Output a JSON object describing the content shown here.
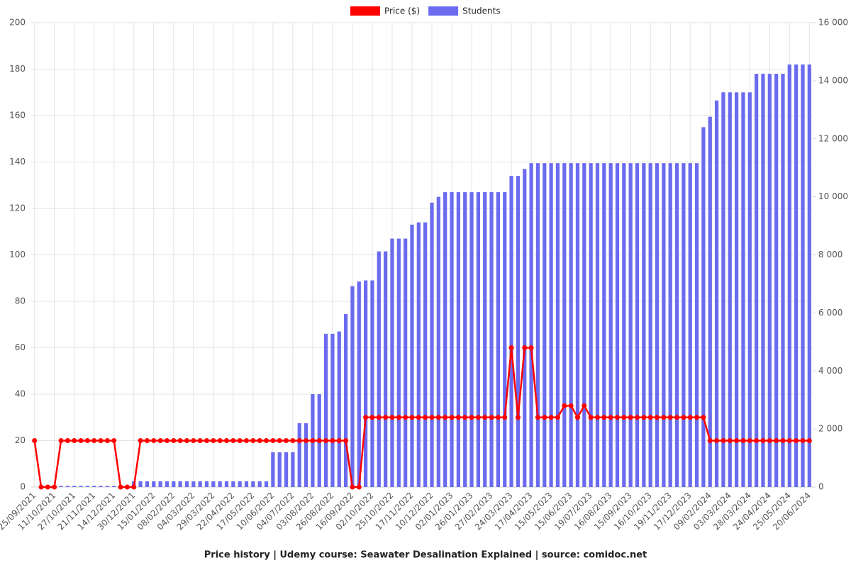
{
  "chart_data": {
    "type": "bar",
    "title": "Price history | Udemy course: Seawater Desalination Explained | source: comidoc.net",
    "categories": [
      "25/09/2021",
      null,
      null,
      "11/10/2021",
      null,
      null,
      "27/10/2021",
      null,
      null,
      "21/11/2021",
      null,
      null,
      "14/12/2021",
      null,
      null,
      "30/12/2021",
      null,
      null,
      "15/01/2022",
      null,
      null,
      "08/02/2022",
      null,
      null,
      "04/03/2022",
      null,
      null,
      "29/03/2022",
      null,
      null,
      "22/04/2022",
      null,
      null,
      "17/05/2022",
      null,
      null,
      "10/06/2022",
      null,
      null,
      "04/07/2022",
      null,
      null,
      "03/08/2022",
      null,
      null,
      "26/08/2022",
      null,
      null,
      "16/09/2022",
      null,
      null,
      "02/10/2022",
      null,
      null,
      "25/10/2022",
      null,
      null,
      "17/11/2022",
      null,
      null,
      "10/12/2022",
      null,
      null,
      "02/01/2023",
      null,
      null,
      "26/01/2023",
      null,
      null,
      "27/02/2023",
      null,
      null,
      "24/03/2023",
      null,
      null,
      "17/04/2023",
      null,
      null,
      "15/05/2023",
      null,
      null,
      "15/06/2023",
      null,
      null,
      "19/07/2023",
      null,
      null,
      "16/08/2023",
      null,
      null,
      "15/09/2023",
      null,
      null,
      "16/10/2023",
      null,
      null,
      "19/11/2023",
      null,
      null,
      "17/12/2023",
      null,
      null,
      "09/02/2024",
      null,
      null,
      "03/03/2024",
      null,
      null,
      "28/03/2024",
      null,
      null,
      "24/04/2024",
      null,
      null,
      "25/05/2024",
      null,
      null,
      "20/06/2024"
    ],
    "series": [
      {
        "name": "Price ($)",
        "type": "line",
        "color": "#ff0000",
        "values": [
          20,
          0,
          0,
          0,
          20,
          20,
          20,
          20,
          20,
          20,
          20,
          20,
          20,
          0,
          0,
          0,
          20,
          20,
          20,
          20,
          20,
          20,
          20,
          20,
          20,
          20,
          20,
          20,
          20,
          20,
          20,
          20,
          20,
          20,
          20,
          20,
          20,
          20,
          20,
          20,
          20,
          20,
          20,
          20,
          20,
          20,
          20,
          20,
          0,
          0,
          30,
          30,
          30,
          30,
          30,
          30,
          30,
          30,
          30,
          30,
          30,
          30,
          30,
          30,
          30,
          30,
          30,
          30,
          30,
          30,
          30,
          30,
          60,
          30,
          60,
          60,
          30,
          30,
          30,
          30,
          35,
          35,
          30,
          35,
          30,
          30,
          30,
          30,
          30,
          30,
          30,
          30,
          30,
          30,
          30,
          30,
          30,
          30,
          30,
          30,
          30,
          30,
          20,
          20,
          20,
          20,
          20,
          20,
          20,
          20,
          20,
          20,
          20,
          20,
          20,
          20,
          20,
          20
        ]
      },
      {
        "name": "Students",
        "type": "bar",
        "axis": "y2",
        "color": "#6b6bef",
        "values": [
          0,
          0,
          0,
          0,
          40,
          40,
          40,
          40,
          40,
          40,
          40,
          40,
          40,
          40,
          40,
          200,
          200,
          200,
          200,
          200,
          200,
          200,
          200,
          200,
          200,
          200,
          200,
          200,
          200,
          200,
          200,
          200,
          200,
          200,
          200,
          200,
          1200,
          1200,
          1200,
          1200,
          2200,
          2200,
          3200,
          3200,
          5280,
          5280,
          5360,
          5960,
          6920,
          7080,
          7120,
          7120,
          8120,
          8120,
          8560,
          8560,
          8560,
          9040,
          9120,
          9120,
          9800,
          10000,
          10160,
          10160,
          10160,
          10160,
          10160,
          10160,
          10160,
          10160,
          10160,
          10160,
          10720,
          10720,
          10960,
          11160,
          11160,
          11160,
          11160,
          11160,
          11160,
          11160,
          11160,
          11160,
          11160,
          11160,
          11160,
          11160,
          11160,
          11160,
          11160,
          11160,
          11160,
          11160,
          11160,
          11160,
          11160,
          11160,
          11160,
          11160,
          11160,
          12400,
          12760,
          13320,
          13600,
          13600,
          13600,
          13600,
          13600,
          14240,
          14240,
          14240,
          14240,
          14240,
          14560,
          14560,
          14560,
          14560
        ]
      }
    ],
    "ylim": [
      0,
      200
    ],
    "yticks": [
      0,
      20,
      40,
      60,
      80,
      100,
      120,
      140,
      160,
      180,
      200
    ],
    "y2lim": [
      0,
      16000
    ],
    "y2ticks": [
      0,
      {
        "value": 2000,
        "label": "2 000"
      },
      {
        "value": 4000,
        "label": "4 000"
      },
      {
        "value": 6000,
        "label": "6 000"
      },
      {
        "value": 8000,
        "label": "8 000"
      },
      {
        "value": 10000,
        "label": "10 000"
      },
      {
        "value": 12000,
        "label": "12 000"
      },
      {
        "value": 14000,
        "label": "14 000"
      },
      {
        "value": 16000,
        "label": "16 000"
      }
    ],
    "grid": true,
    "legend": "top"
  }
}
